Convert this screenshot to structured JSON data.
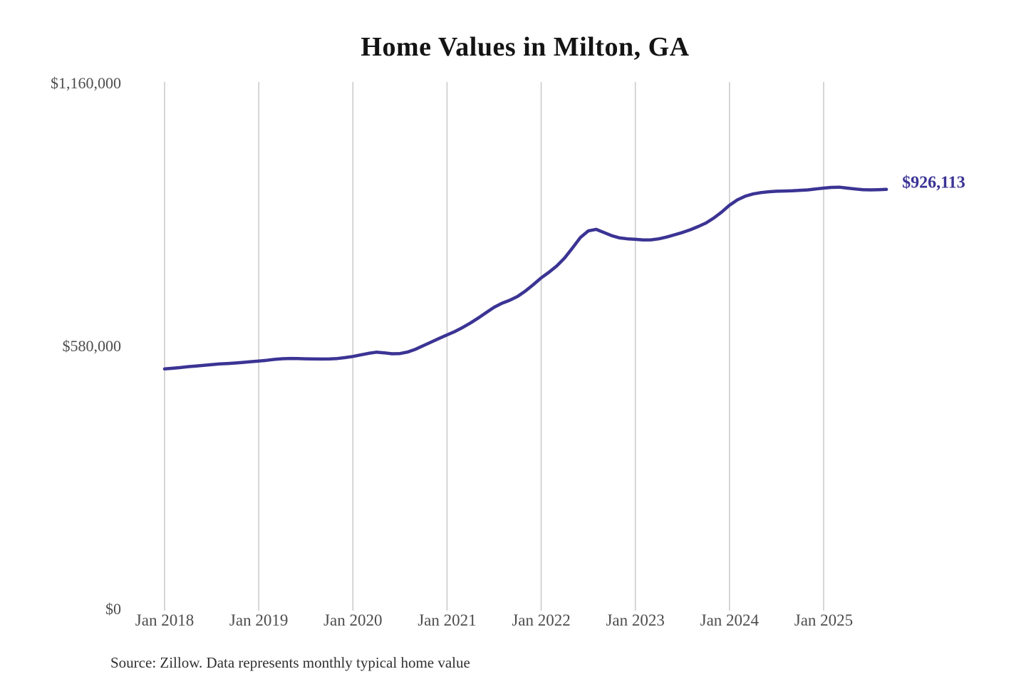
{
  "chart": {
    "line_color": "#3b3494",
    "grid_color": "#cccccc",
    "end_label": "$926,113"
  },
  "chart_data": {
    "type": "line",
    "title": "Home Values in Milton, GA",
    "source": "Source: Zillow. Data represents monthly typical home value",
    "series_name": "Monthly typical home value",
    "frequency": "monthly",
    "x_start": "Jan 2018",
    "x_end": "Sep 2025",
    "x_ticks": [
      "Jan 2018",
      "Jan 2019",
      "Jan 2020",
      "Jan 2021",
      "Jan 2022",
      "Jan 2023",
      "Jan 2024",
      "Jan 2025"
    ],
    "y_ticks": [
      {
        "label": "$1,160,000",
        "value": 1160000
      },
      {
        "label": "$580,000",
        "value": 580000
      },
      {
        "label": "$0",
        "value": 0
      }
    ],
    "ylim": [
      0,
      1160000
    ],
    "grid": "vertical-only",
    "legend": "none",
    "end_label": "$926,113",
    "final_value": 926113,
    "values": [
      530000,
      531500,
      533000,
      535000,
      536500,
      538000,
      539500,
      541000,
      542000,
      543000,
      544500,
      546000,
      547500,
      549000,
      551000,
      552500,
      553200,
      553000,
      552400,
      552000,
      551800,
      552000,
      553000,
      555000,
      557500,
      561000,
      564500,
      567000,
      565500,
      563500,
      564000,
      567500,
      573500,
      581500,
      589500,
      597500,
      605000,
      612500,
      621500,
      631500,
      642500,
      654500,
      666000,
      675000,
      681500,
      690000,
      702000,
      716000,
      731000,
      743500,
      757500,
      775000,
      797000,
      820000,
      834500,
      838000,
      831000,
      824000,
      819000,
      817000,
      816000,
      814500,
      814800,
      817000,
      821000,
      826000,
      831000,
      837000,
      844000,
      852000,
      863000,
      876000,
      891000,
      903000,
      911000,
      916000,
      919000,
      921000,
      922000,
      922500,
      923000,
      924000,
      925000,
      927000,
      929000,
      930500,
      931000,
      929000,
      927000,
      925500,
      925000,
      925500,
      926113
    ]
  }
}
